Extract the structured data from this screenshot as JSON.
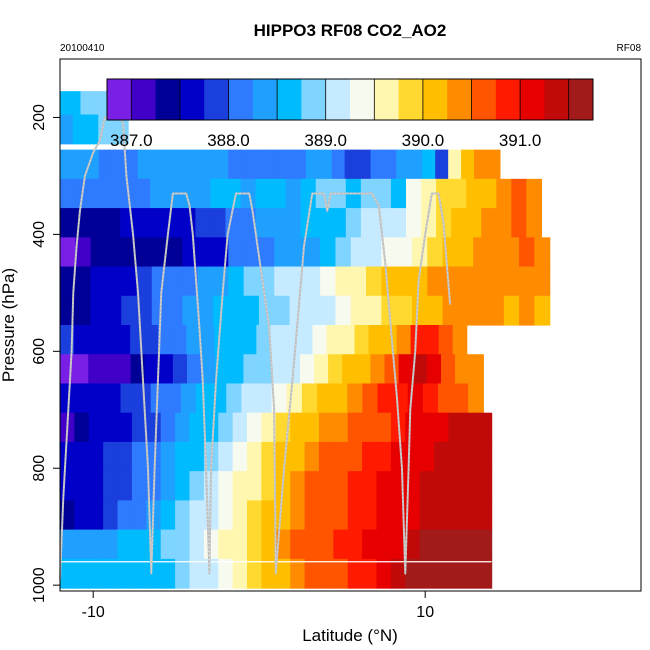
{
  "chart_data": {
    "type": "heatmap",
    "title": "HIPPO3 RF08 CO2_AO2",
    "subtitle_left": "20100410",
    "subtitle_right": "RF08",
    "xlabel": "Latitude (°N)",
    "ylabel": "Pressure (hPa)",
    "xlim": [
      -12,
      23
    ],
    "ylim": [
      1010,
      100
    ],
    "x_ticks": [
      {
        "value": -10,
        "label": "-10"
      },
      {
        "value": 10,
        "label": "10"
      }
    ],
    "y_ticks": [
      {
        "value": 200,
        "label": "200"
      },
      {
        "value": 400,
        "label": "400"
      },
      {
        "value": 600,
        "label": "600"
      },
      {
        "value": 800,
        "label": "800"
      },
      {
        "value": 1000,
        "label": "1000"
      }
    ],
    "colorbar": {
      "min": 386.75,
      "max": 391.75,
      "step": 0.25,
      "ticks": [
        {
          "value": 387.0,
          "label": "387.0"
        },
        {
          "value": 388.0,
          "label": "388.0"
        },
        {
          "value": 389.0,
          "label": "389.0"
        },
        {
          "value": 390.0,
          "label": "390.0"
        },
        {
          "value": 391.0,
          "label": "391.0"
        }
      ],
      "colors": [
        "#7a1fe6",
        "#4000c8",
        "#000096",
        "#0000c8",
        "#1a3fdc",
        "#2f7bff",
        "#1fa0ff",
        "#00bcff",
        "#7fd5ff",
        "#c6eaff",
        "#f7fbef",
        "#fff6b0",
        "#ffd930",
        "#ffbf00",
        "#ff8c00",
        "#ff5500",
        "#ff1a00",
        "#e60000",
        "#c00a0a",
        "#a31a1a"
      ]
    },
    "rows": [
      {
        "p": 180,
        "x0": -12,
        "x1": -8.3,
        "values": [
          388.7,
          388.7,
          388.7,
          388.7,
          388.7,
          388.8,
          388.8,
          388.9,
          388.8,
          388.9,
          388.9,
          388.9,
          388.8,
          388.8,
          388.8
        ]
      },
      {
        "p": 220,
        "x0": -12,
        "x1": -7.9,
        "values": [
          388.4,
          388.4,
          388.4,
          388.5,
          388.5,
          388.6,
          388.6,
          388.7,
          388.7,
          388.8,
          388.8,
          388.8,
          388.8,
          388.8,
          388.8,
          388.8
        ]
      },
      {
        "p": 280,
        "x0": -12,
        "x1": 14.5,
        "values": [
          388.4,
          388.4,
          388.3,
          388.2,
          388.2,
          388.2,
          388.3,
          388.4,
          388.4,
          388.3,
          388.4,
          388.4,
          388.4,
          388.2,
          388.0,
          388.1,
          388.1,
          388.0,
          388.1,
          388.4,
          388.4,
          388.1,
          387.8,
          387.9,
          388.0,
          388.1,
          388.3,
          388.4,
          388.6,
          387.9,
          389.6,
          390.2,
          390.3,
          390.3
        ]
      },
      {
        "p": 330,
        "x0": -12,
        "x1": 17.0,
        "values": [
          388.0,
          388.0,
          388.0,
          388.1,
          388.2,
          388.2,
          388.3,
          388.4,
          388.4,
          388.3,
          388.6,
          388.5,
          388.4,
          388.6,
          388.5,
          388.4,
          388.7,
          388.8,
          388.8,
          388.7,
          388.9,
          388.9,
          388.7,
          389.3,
          389.5,
          389.8,
          389.9,
          390.0,
          390.2,
          390.3,
          390.5,
          390.4
        ]
      },
      {
        "p": 380,
        "x0": -12,
        "x1": 17.0,
        "values": [
          387.4,
          387.4,
          387.4,
          387.4,
          387.5,
          387.6,
          387.6,
          387.7,
          387.7,
          387.8,
          387.9,
          388.0,
          388.1,
          388.3,
          388.3,
          388.3,
          388.5,
          388.6,
          388.7,
          388.8,
          389.0,
          389.1,
          389.2,
          389.3,
          389.6,
          389.9,
          390.1,
          390.2,
          390.4,
          390.4,
          390.5,
          390.4
        ]
      },
      {
        "p": 430,
        "x0": -12,
        "x1": 17.5,
        "values": [
          386.9,
          387.1,
          387.3,
          387.4,
          387.4,
          387.4,
          387.4,
          387.4,
          387.5,
          387.5,
          387.7,
          388.0,
          388.2,
          388.1,
          388.3,
          388.4,
          388.4,
          388.6,
          388.8,
          389.0,
          389.1,
          389.3,
          389.4,
          389.5,
          389.8,
          390.1,
          390.2,
          390.3,
          390.4,
          390.4,
          390.5,
          390.4
        ]
      },
      {
        "p": 480,
        "x0": -12,
        "x1": 17.5,
        "values": [
          387.3,
          387.3,
          387.5,
          387.5,
          387.7,
          387.8,
          388.0,
          388.0,
          388.2,
          388.4,
          388.3,
          388.6,
          388.8,
          388.9,
          389.0,
          389.1,
          389.2,
          389.4,
          389.6,
          389.7,
          389.9,
          390.0,
          390.1,
          390.2,
          390.3,
          390.3,
          390.4,
          390.4,
          390.4,
          390.4,
          390.3,
          390.3
        ]
      },
      {
        "p": 530,
        "x0": -12,
        "x1": 17.5,
        "values": [
          387.3,
          387.4,
          387.6,
          387.7,
          387.8,
          387.9,
          388.0,
          388.1,
          388.3,
          388.4,
          388.5,
          388.6,
          388.7,
          388.8,
          388.9,
          389.0,
          389.1,
          389.2,
          389.3,
          389.5,
          389.7,
          389.8,
          389.9,
          390.0,
          390.2,
          390.3,
          390.3,
          390.4,
          390.3,
          390.2,
          390.3,
          390.2
        ]
      },
      {
        "p": 580,
        "x0": -12,
        "x1": 12.5,
        "values": [
          387.8,
          387.7,
          387.6,
          387.7,
          387.7,
          387.8,
          387.9,
          388.0,
          388.1,
          388.3,
          388.4,
          388.5,
          388.6,
          388.7,
          388.9,
          389.0,
          389.1,
          389.2,
          389.4,
          389.5,
          389.7,
          389.9,
          390.0,
          390.2,
          390.4,
          390.8,
          390.9,
          390.6,
          390.3
        ]
      },
      {
        "p": 630,
        "x0": -12,
        "x1": 13.5,
        "values": [
          386.8,
          386.9,
          387.0,
          387.1,
          387.2,
          387.3,
          387.5,
          387.7,
          387.9,
          388.1,
          388.3,
          388.5,
          388.7,
          388.8,
          388.9,
          389.0,
          389.2,
          389.4,
          389.6,
          389.8,
          390.0,
          390.2,
          390.4,
          390.6,
          391.1,
          391.3,
          391.0,
          390.6,
          390.3,
          390.3
        ]
      },
      {
        "p": 680,
        "x0": -12,
        "x1": 13.5,
        "values": [
          387.5,
          387.5,
          387.6,
          387.7,
          387.8,
          387.9,
          388.0,
          388.2,
          388.4,
          388.5,
          388.7,
          388.9,
          389.0,
          389.2,
          389.4,
          389.6,
          389.8,
          390.0,
          390.2,
          390.4,
          390.6,
          390.8,
          390.9,
          391.0,
          390.9,
          390.7,
          390.5,
          390.3
        ]
      },
      {
        "p": 730,
        "x0": -12,
        "x1": 14.0,
        "values": [
          387.1,
          387.3,
          387.5,
          387.6,
          387.7,
          387.8,
          387.9,
          388.1,
          388.3,
          388.5,
          388.7,
          388.9,
          389.2,
          389.4,
          389.6,
          389.8,
          390.0,
          390.2,
          390.3,
          390.4,
          390.5,
          390.6,
          390.7,
          390.8,
          391.0,
          391.1,
          391.2,
          391.3,
          391.3,
          391.3
        ]
      },
      {
        "p": 780,
        "x0": -12,
        "x1": 14.0,
        "values": [
          387.5,
          387.6,
          387.7,
          387.8,
          387.9,
          388.0,
          388.1,
          388.3,
          388.5,
          388.7,
          388.9,
          389.1,
          389.4,
          389.6,
          389.8,
          390.0,
          390.2,
          390.4,
          390.5,
          390.6,
          390.7,
          390.8,
          390.9,
          391.0,
          391.1,
          391.2,
          391.3,
          391.3,
          391.3,
          391.3
        ]
      },
      {
        "p": 830,
        "x0": -12,
        "x1": 14.0,
        "values": [
          387.6,
          387.6,
          387.7,
          387.8,
          387.9,
          388.0,
          388.2,
          388.4,
          388.6,
          388.8,
          389.0,
          389.3,
          389.5,
          389.7,
          389.9,
          390.1,
          390.3,
          390.5,
          390.6,
          390.7,
          390.8,
          390.9,
          391.0,
          391.1,
          391.2,
          391.3,
          391.3,
          391.3,
          391.3,
          391.3
        ]
      },
      {
        "p": 880,
        "x0": -12,
        "x1": 14.0,
        "values": [
          387.4,
          387.5,
          387.6,
          387.8,
          388.0,
          388.2,
          388.4,
          388.6,
          388.8,
          389.0,
          389.2,
          389.4,
          389.6,
          389.8,
          390.0,
          390.2,
          390.4,
          390.5,
          390.6,
          390.7,
          390.8,
          390.9,
          391.0,
          391.1,
          391.2,
          391.3,
          391.4,
          391.4,
          391.4,
          391.4
        ]
      },
      {
        "p": 930,
        "x0": -12,
        "x1": 14.0,
        "values": [
          388.3,
          388.3,
          388.4,
          388.4,
          388.5,
          388.6,
          388.7,
          388.8,
          388.9,
          389.1,
          389.3,
          389.5,
          389.7,
          389.9,
          390.1,
          390.3,
          390.5,
          390.6,
          390.7,
          390.8,
          390.9,
          391.0,
          391.1,
          391.2,
          391.4,
          391.5,
          391.6,
          391.6,
          391.6,
          391.6
        ]
      },
      {
        "p": 980,
        "x0": -12,
        "x1": 14.0,
        "values": [
          388.6,
          388.6,
          388.6,
          388.6,
          388.6,
          388.6,
          388.6,
          388.7,
          388.8,
          389.0,
          389.2,
          389.4,
          389.6,
          389.8,
          390.0,
          390.2,
          390.4,
          390.5,
          390.6,
          390.7,
          390.8,
          390.9,
          391.1,
          391.3,
          391.6,
          391.7,
          391.7,
          391.7,
          391.7,
          391.7
        ]
      }
    ],
    "flight_track": [
      [
        -12.0,
        990
      ],
      [
        -11.8,
        850
      ],
      [
        -11.5,
        700
      ],
      [
        -11.3,
        600
      ],
      [
        -11.2,
        500
      ],
      [
        -11.0,
        420
      ],
      [
        -10.8,
        360
      ],
      [
        -10.5,
        300
      ],
      [
        -10.0,
        260
      ],
      [
        -9.6,
        240
      ],
      [
        -9.3,
        200
      ],
      [
        -8.4,
        200
      ],
      [
        -8.2,
        210
      ],
      [
        -8.0,
        300
      ],
      [
        -7.6,
        400
      ],
      [
        -7.3,
        500
      ],
      [
        -7.0,
        650
      ],
      [
        -6.7,
        800
      ],
      [
        -6.5,
        980
      ],
      [
        -6.3,
        800
      ],
      [
        -6.1,
        650
      ],
      [
        -5.9,
        500
      ],
      [
        -5.5,
        400
      ],
      [
        -5.2,
        330
      ],
      [
        -4.4,
        330
      ],
      [
        -4.2,
        350
      ],
      [
        -4.0,
        400
      ],
      [
        -3.8,
        480
      ],
      [
        -3.6,
        560
      ],
      [
        -3.4,
        650
      ],
      [
        -3.2,
        800
      ],
      [
        -3.0,
        980
      ],
      [
        -2.9,
        800
      ],
      [
        -2.6,
        650
      ],
      [
        -2.2,
        500
      ],
      [
        -1.9,
        400
      ],
      [
        -1.4,
        330
      ],
      [
        -0.6,
        330
      ],
      [
        -0.4,
        360
      ],
      [
        -0.1,
        420
      ],
      [
        0.3,
        500
      ],
      [
        0.6,
        560
      ],
      [
        0.9,
        700
      ],
      [
        1.0,
        980
      ],
      [
        1.5,
        800
      ],
      [
        2.0,
        650
      ],
      [
        2.4,
        520
      ],
      [
        2.7,
        420
      ],
      [
        3.2,
        330
      ],
      [
        3.9,
        330
      ],
      [
        4.1,
        360
      ],
      [
        4.3,
        330
      ],
      [
        6.7,
        330
      ],
      [
        6.8,
        330
      ],
      [
        7.2,
        350
      ],
      [
        7.6,
        450
      ],
      [
        7.9,
        550
      ],
      [
        8.3,
        680
      ],
      [
        8.6,
        800
      ],
      [
        8.8,
        980
      ],
      [
        9.0,
        800
      ],
      [
        9.1,
        700
      ],
      [
        9.4,
        600
      ],
      [
        9.6,
        480
      ],
      [
        10.0,
        400
      ],
      [
        10.4,
        330
      ],
      [
        10.8,
        330
      ],
      [
        11.1,
        380
      ],
      [
        11.5,
        520
      ]
    ]
  }
}
